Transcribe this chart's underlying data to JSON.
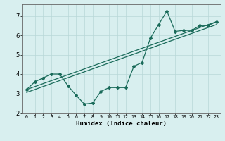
{
  "xlabel": "Humidex (Indice chaleur)",
  "x_values": [
    0,
    1,
    2,
    3,
    4,
    5,
    6,
    7,
    8,
    9,
    10,
    11,
    12,
    13,
    14,
    15,
    16,
    17,
    18,
    19,
    20,
    21,
    22,
    23
  ],
  "line1_y": [
    3.2,
    3.6,
    3.8,
    4.0,
    4.0,
    3.4,
    2.9,
    2.45,
    2.5,
    3.1,
    3.3,
    3.3,
    3.3,
    4.4,
    4.6,
    5.85,
    6.55,
    7.25,
    6.2,
    6.25,
    6.25,
    6.5,
    6.5,
    6.7
  ],
  "trend1_x": [
    0,
    23
  ],
  "trend1_y": [
    3.2,
    6.7
  ],
  "trend2_x": [
    0,
    23
  ],
  "trend2_y": [
    3.05,
    6.55
  ],
  "line_color": "#1a6b5a",
  "bg_color": "#d8efef",
  "grid_color": "#b8d8d8",
  "ylim": [
    2.0,
    7.6
  ],
  "yticks": [
    2,
    3,
    4,
    5,
    6,
    7
  ],
  "xlim": [
    -0.5,
    23.5
  ],
  "xlabel_fontsize": 6.5,
  "ytick_fontsize": 6,
  "xtick_fontsize": 4.8
}
